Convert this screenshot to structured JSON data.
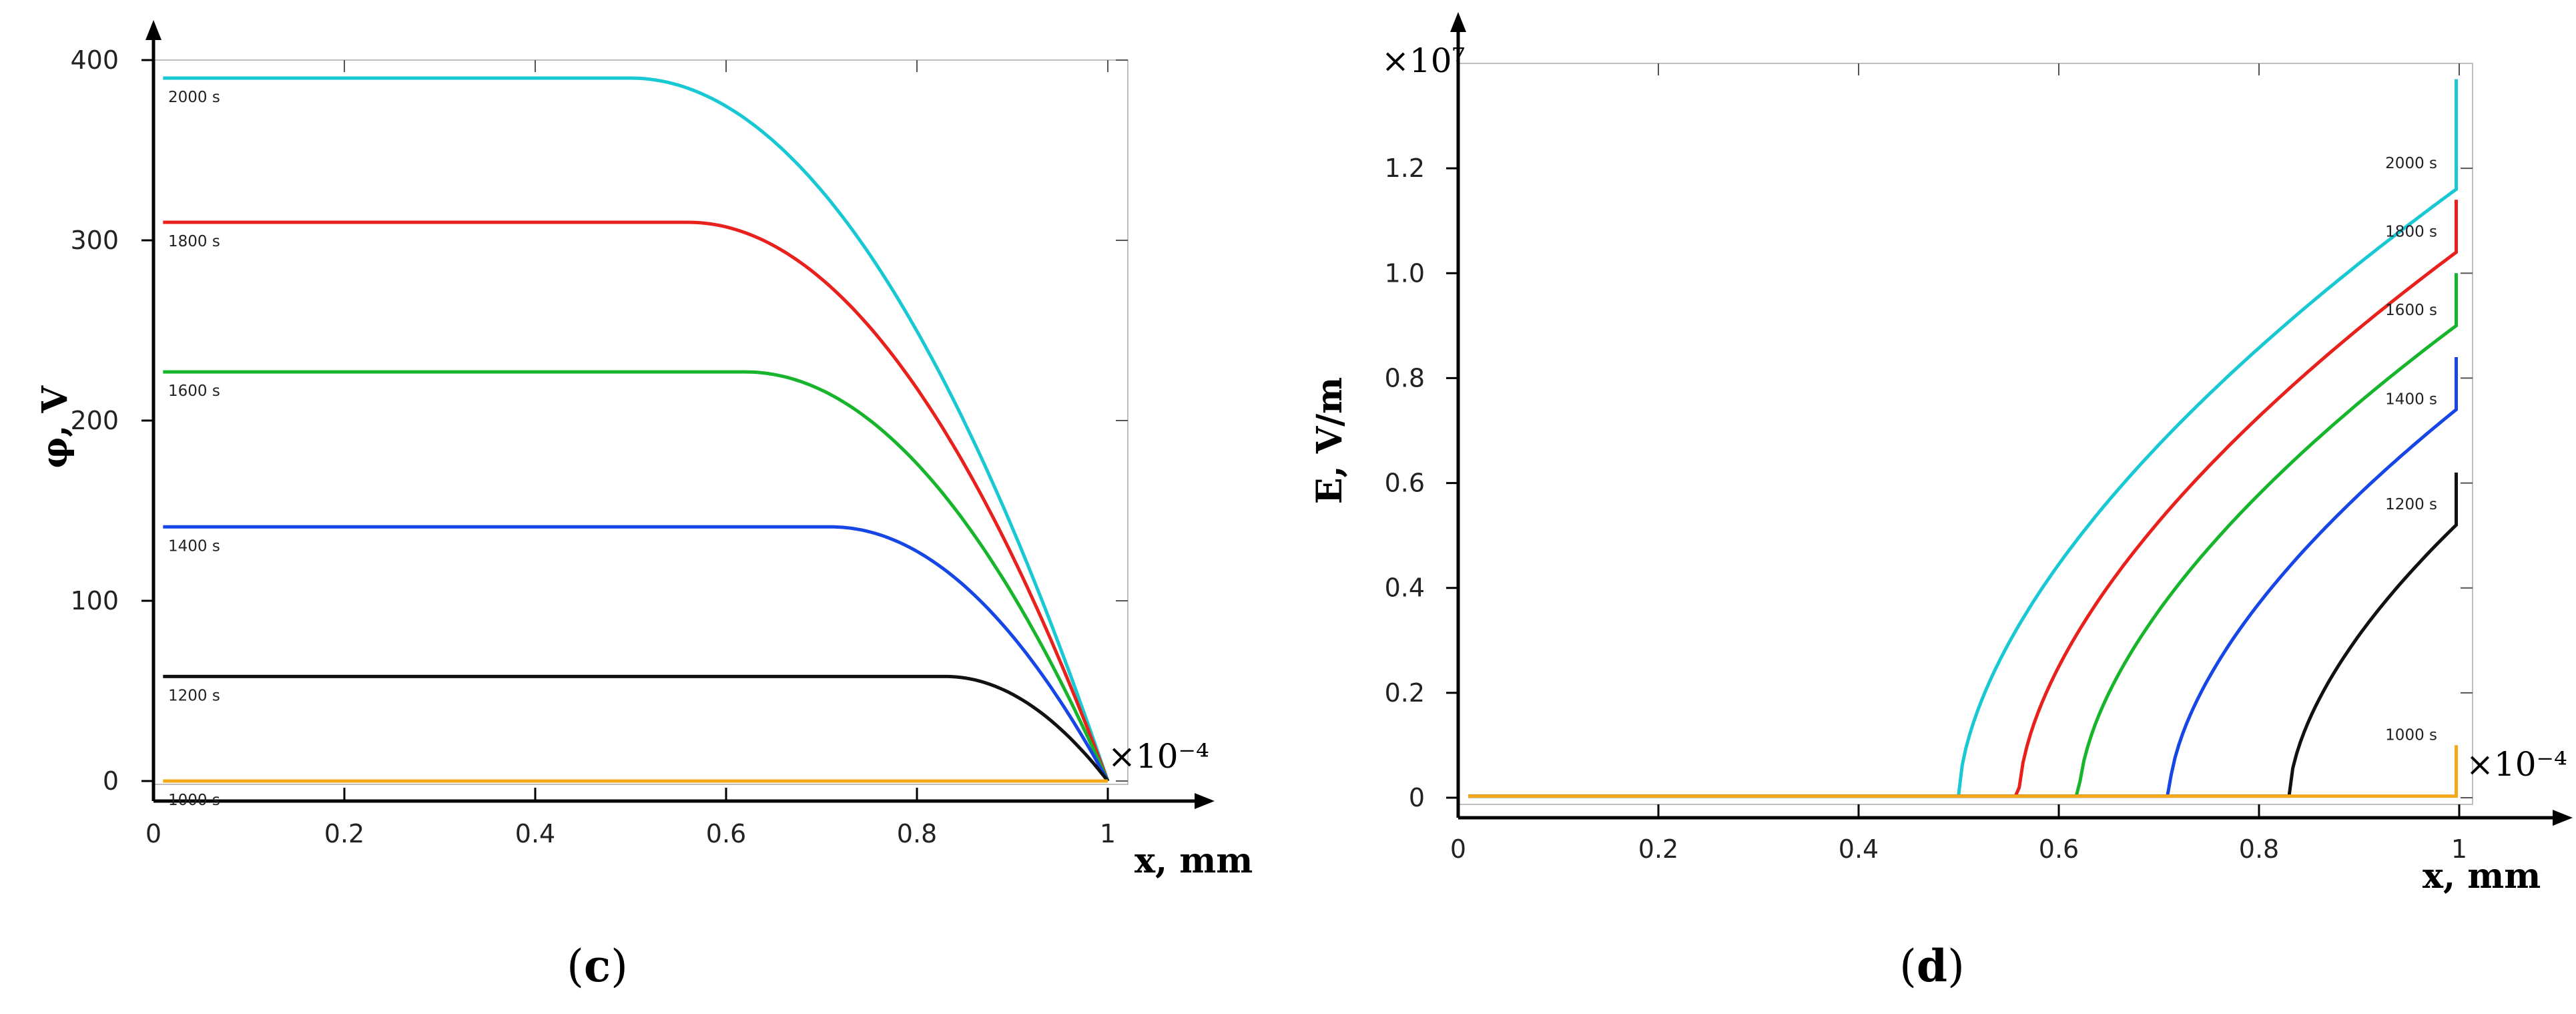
{
  "chart_data": [
    {
      "type": "line",
      "panel": "c",
      "caption_open": "(",
      "caption_letter": "c",
      "caption_close": ")",
      "xlabel": "x, mm",
      "ylabel": "φ, V",
      "x_multiplier": "×10⁻⁴",
      "xlim": [
        0,
        1
      ],
      "ylim": [
        0,
        400
      ],
      "x_ticks": [
        "0",
        "0.2",
        "0.4",
        "0.6",
        "0.8",
        "1"
      ],
      "y_ticks": [
        "0",
        "100",
        "200",
        "300",
        "400"
      ],
      "series": [
        {
          "name": "2000 s",
          "color": "#18c8d2",
          "plateau": 390,
          "knee": 0.5
        },
        {
          "name": "1800 s",
          "color": "#e8211d",
          "plateau": 310,
          "knee": 0.56
        },
        {
          "name": "1600 s",
          "color": "#17b52b",
          "plateau": 227,
          "knee": 0.62
        },
        {
          "name": "1400 s",
          "color": "#1746e6",
          "plateau": 141,
          "knee": 0.71
        },
        {
          "name": "1200 s",
          "color": "#111111",
          "plateau": 58,
          "knee": 0.83
        },
        {
          "name": "1000 s",
          "color": "#f5a81a",
          "plateau": 0,
          "knee": 0.99
        }
      ]
    },
    {
      "type": "line",
      "panel": "d",
      "caption_open": "(",
      "caption_letter": "d",
      "caption_close": ")",
      "xlabel": "x, mm",
      "ylabel": "E, V/m",
      "x_multiplier": "×10⁻⁴",
      "y_multiplier": "×10⁷",
      "xlim": [
        0,
        1
      ],
      "ylim": [
        0,
        1.4
      ],
      "x_ticks": [
        "0",
        "0.2",
        "0.4",
        "0.6",
        "0.8",
        "1"
      ],
      "y_ticks": [
        "0",
        "0.2",
        "0.4",
        "0.6",
        "0.8",
        "1.0",
        "1.2"
      ],
      "series": [
        {
          "name": "2000 s",
          "color": "#18c8d2",
          "onset": 0.5,
          "end_value": 1.16,
          "label_y": 1.2
        },
        {
          "name": "1800 s",
          "color": "#e8211d",
          "onset": 0.56,
          "end_value": 1.04,
          "label_y": 1.07
        },
        {
          "name": "1600 s",
          "color": "#17b52b",
          "onset": 0.62,
          "end_value": 0.9,
          "label_y": 0.92
        },
        {
          "name": "1400 s",
          "color": "#1746e6",
          "onset": 0.71,
          "end_value": 0.74,
          "label_y": 0.75
        },
        {
          "name": "1200 s",
          "color": "#111111",
          "onset": 0.83,
          "end_value": 0.52,
          "label_y": 0.55
        },
        {
          "name": "1000 s",
          "color": "#f5a81a",
          "onset": 1.0,
          "end_value": 0.0,
          "label_y": 0.11
        }
      ]
    }
  ]
}
